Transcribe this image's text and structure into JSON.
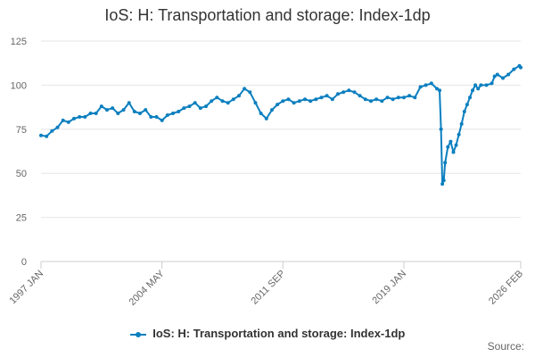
{
  "chart_data": {
    "type": "line",
    "title": "IoS: H: Transportation and storage: Index-1dp",
    "xlabel": "",
    "ylabel": "",
    "ylim": [
      0,
      125
    ],
    "yticks": [
      0,
      25,
      50,
      75,
      100,
      125
    ],
    "xlim": [
      "1997-01",
      "2026-02"
    ],
    "xticks": [
      "1997 JAN",
      "2004 MAY",
      "2011 SEP",
      "2019 JAN",
      "2026 FEB"
    ],
    "grid": "horizontal",
    "legend_position": "bottom",
    "source_label": "Source:",
    "series": [
      {
        "name": "IoS: H: Transportation and storage: Index-1dp",
        "color": "#0b7fbf",
        "points": [
          [
            "1997-01",
            71.5
          ],
          [
            "1997-05",
            71
          ],
          [
            "1997-09",
            74
          ],
          [
            "1998-01",
            76
          ],
          [
            "1998-05",
            80
          ],
          [
            "1998-09",
            79
          ],
          [
            "1999-01",
            81
          ],
          [
            "1999-05",
            82
          ],
          [
            "1999-09",
            82
          ],
          [
            "2000-01",
            84
          ],
          [
            "2000-05",
            84
          ],
          [
            "2000-09",
            88
          ],
          [
            "2001-01",
            86
          ],
          [
            "2001-05",
            87
          ],
          [
            "2001-09",
            84
          ],
          [
            "2002-01",
            86
          ],
          [
            "2002-05",
            90
          ],
          [
            "2002-09",
            85
          ],
          [
            "2003-01",
            84
          ],
          [
            "2003-05",
            86
          ],
          [
            "2003-09",
            82
          ],
          [
            "2004-01",
            82
          ],
          [
            "2004-05",
            80
          ],
          [
            "2004-09",
            83
          ],
          [
            "2005-01",
            84
          ],
          [
            "2005-05",
            85
          ],
          [
            "2005-09",
            87
          ],
          [
            "2006-01",
            88
          ],
          [
            "2006-05",
            90
          ],
          [
            "2006-09",
            87
          ],
          [
            "2007-01",
            88
          ],
          [
            "2007-05",
            91
          ],
          [
            "2007-09",
            93
          ],
          [
            "2008-01",
            91
          ],
          [
            "2008-05",
            90
          ],
          [
            "2008-09",
            92
          ],
          [
            "2009-01",
            94
          ],
          [
            "2009-05",
            98
          ],
          [
            "2009-09",
            96
          ],
          [
            "2010-01",
            90
          ],
          [
            "2010-05",
            84
          ],
          [
            "2010-09",
            81
          ],
          [
            "2011-01",
            86
          ],
          [
            "2011-05",
            89
          ],
          [
            "2011-09",
            91
          ],
          [
            "2012-01",
            92
          ],
          [
            "2012-05",
            90
          ],
          [
            "2012-09",
            91
          ],
          [
            "2013-01",
            92
          ],
          [
            "2013-05",
            91
          ],
          [
            "2013-09",
            92
          ],
          [
            "2014-01",
            93
          ],
          [
            "2014-05",
            94
          ],
          [
            "2014-09",
            92
          ],
          [
            "2015-01",
            95
          ],
          [
            "2015-05",
            96
          ],
          [
            "2015-09",
            97
          ],
          [
            "2016-01",
            96
          ],
          [
            "2016-05",
            94
          ],
          [
            "2016-09",
            92
          ],
          [
            "2017-01",
            91
          ],
          [
            "2017-05",
            92
          ],
          [
            "2017-09",
            91
          ],
          [
            "2018-01",
            93
          ],
          [
            "2018-05",
            92
          ],
          [
            "2018-09",
            93
          ],
          [
            "2019-01",
            93
          ],
          [
            "2019-05",
            94
          ],
          [
            "2019-09",
            93
          ],
          [
            "2020-01",
            99
          ],
          [
            "2020-05",
            100
          ],
          [
            "2020-09",
            101
          ],
          [
            "2021-01",
            98
          ],
          [
            "2021-03",
            97
          ],
          [
            "2021-04",
            75
          ],
          [
            "2021-05",
            44
          ],
          [
            "2021-06",
            46
          ],
          [
            "2021-07",
            56
          ],
          [
            "2021-09",
            65
          ],
          [
            "2021-11",
            68
          ],
          [
            "2022-01",
            62
          ],
          [
            "2022-03",
            66
          ],
          [
            "2022-05",
            72
          ],
          [
            "2022-07",
            78
          ],
          [
            "2022-09",
            85
          ],
          [
            "2022-11",
            89
          ],
          [
            "2023-01",
            93
          ],
          [
            "2023-03",
            97
          ],
          [
            "2023-05",
            100
          ],
          [
            "2023-07",
            98
          ],
          [
            "2023-09",
            100
          ],
          [
            "2024-01",
            100
          ],
          [
            "2024-05",
            101
          ],
          [
            "2024-07",
            105
          ],
          [
            "2024-09",
            106
          ],
          [
            "2025-01",
            104
          ],
          [
            "2025-05",
            106
          ],
          [
            "2025-09",
            109
          ],
          [
            "2026-01",
            111
          ],
          [
            "2026-02",
            110
          ]
        ]
      }
    ]
  }
}
